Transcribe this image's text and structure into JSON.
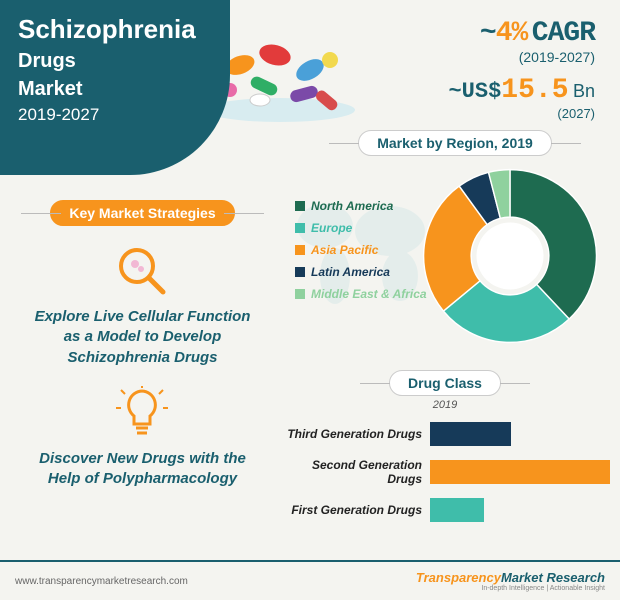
{
  "header": {
    "title_l1": "Schizophrenia",
    "title_l2": "Drugs",
    "title_l3": "Market",
    "years": "2019-2027"
  },
  "cagr": {
    "tilde": "~",
    "value": "4%",
    "label": "CAGR",
    "period": "(2019-2027)"
  },
  "valuation": {
    "prefix": "~US$",
    "value": "15.5",
    "suffix": "Bn",
    "year": "(2027)"
  },
  "region": {
    "title": "Market by Region, 2019",
    "legend": [
      {
        "label": "North America",
        "color": "#1e6b50"
      },
      {
        "label": "Europe",
        "color": "#3fbdaa"
      },
      {
        "label": "Asia Pacific",
        "color": "#f7941d"
      },
      {
        "label": "Latin America",
        "color": "#163a59"
      },
      {
        "label": "Middle East & Africa",
        "color": "#8fd19e"
      }
    ],
    "donut": {
      "values": [
        38,
        26,
        26,
        6,
        4
      ],
      "colors": [
        "#1e6b50",
        "#3fbdaa",
        "#f7941d",
        "#163a59",
        "#8fd19e"
      ],
      "inner_ratio": 0.45,
      "background_color": "#f4f4f0"
    }
  },
  "strategies": {
    "title": "Key Market Strategies",
    "items": [
      {
        "icon": "magnifier",
        "text": "Explore Live Cellular Function as a Model to Develop Schizophrenia Drugs"
      },
      {
        "icon": "lightbulb",
        "text": "Discover New Drugs with the Help of Polypharmacology"
      }
    ],
    "icon_color": "#f7941d"
  },
  "drug_class": {
    "title": "Drug Class",
    "year": "2019",
    "bars": [
      {
        "label": "Third Generation Drugs",
        "value": 45,
        "color": "#163a59"
      },
      {
        "label": "Second Generation Drugs",
        "value": 100,
        "color": "#f7941d"
      },
      {
        "label": "First Generation Drugs",
        "value": 30,
        "color": "#3fbdaa"
      }
    ],
    "max": 100
  },
  "footer": {
    "url": "www.transparencymarketresearch.com",
    "logo_1": "Transparency",
    "logo_2": "Market Research",
    "tagline": "In-depth Intelligence | Actionable Insight"
  }
}
